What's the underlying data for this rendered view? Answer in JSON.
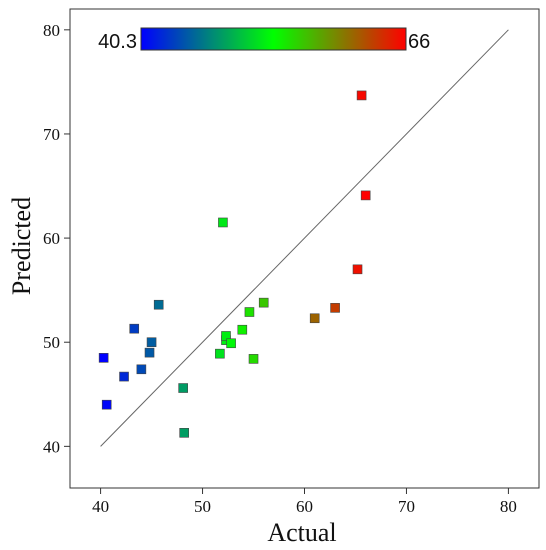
{
  "chart_data": {
    "type": "scatter",
    "xlabel": "Actual",
    "ylabel": "Predicted",
    "xlim": [
      37,
      83
    ],
    "ylim": [
      36,
      82
    ],
    "xticks": [
      40,
      50,
      60,
      70,
      80
    ],
    "yticks": [
      40,
      50,
      60,
      70,
      80
    ],
    "x_tick_labels": [
      "40",
      "50",
      "60",
      "70",
      "80"
    ],
    "y_tick_labels": [
      "40",
      "50",
      "60",
      "70",
      "80"
    ],
    "grid": false,
    "reference_line": {
      "x": [
        40,
        80
      ],
      "y": [
        40,
        80
      ]
    },
    "colorbar": {
      "min": 40.3,
      "max": 66,
      "min_label": "40.3",
      "max_label": "66",
      "colors": [
        "#0000ff",
        "#00ff00",
        "#ff0000"
      ],
      "placement": "top-left"
    },
    "points": [
      {
        "x": 40.3,
        "y": 48.5
      },
      {
        "x": 40.6,
        "y": 44.0
      },
      {
        "x": 42.3,
        "y": 46.7
      },
      {
        "x": 43.3,
        "y": 51.3
      },
      {
        "x": 44.0,
        "y": 47.4
      },
      {
        "x": 44.8,
        "y": 49.0
      },
      {
        "x": 45.0,
        "y": 50.0
      },
      {
        "x": 45.7,
        "y": 53.6
      },
      {
        "x": 48.1,
        "y": 45.6
      },
      {
        "x": 48.2,
        "y": 41.3
      },
      {
        "x": 51.7,
        "y": 48.9
      },
      {
        "x": 52.0,
        "y": 61.5
      },
      {
        "x": 52.3,
        "y": 50.2
      },
      {
        "x": 52.3,
        "y": 50.6
      },
      {
        "x": 52.8,
        "y": 49.9
      },
      {
        "x": 53.9,
        "y": 51.2
      },
      {
        "x": 54.6,
        "y": 52.9
      },
      {
        "x": 55.0,
        "y": 48.4
      },
      {
        "x": 56.0,
        "y": 53.8
      },
      {
        "x": 61.0,
        "y": 52.3
      },
      {
        "x": 63.0,
        "y": 53.3
      },
      {
        "x": 65.2,
        "y": 57.0
      },
      {
        "x": 65.6,
        "y": 73.7
      },
      {
        "x": 66.0,
        "y": 64.1
      }
    ]
  }
}
